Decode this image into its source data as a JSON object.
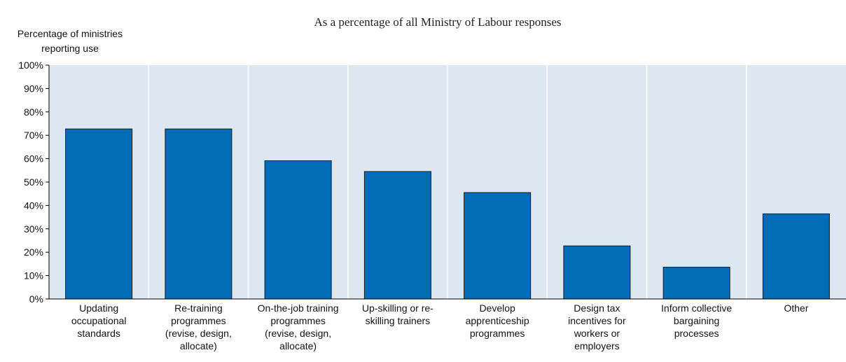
{
  "chart_data": {
    "type": "bar",
    "title": "As a percentage of all Ministry of Labour responses",
    "ylabel_lines": [
      "Percentage of ministries",
      "reporting use"
    ],
    "xlabel": "",
    "ylim": [
      0,
      100
    ],
    "yticks": [
      0,
      10,
      20,
      30,
      40,
      50,
      60,
      70,
      80,
      90,
      100
    ],
    "ytick_labels": [
      "0%",
      "10%",
      "20%",
      "30%",
      "40%",
      "50%",
      "60%",
      "70%",
      "80%",
      "90%",
      "100%"
    ],
    "grid": "vertical separators between categories",
    "categories": [
      {
        "lines": [
          "Updating",
          "occupational",
          "standards"
        ]
      },
      {
        "lines": [
          "Re-training",
          "programmes",
          "(revise, design,",
          "allocate)"
        ]
      },
      {
        "lines": [
          "On-the-job training",
          "programmes",
          "(revise, design,",
          "allocate)"
        ]
      },
      {
        "lines": [
          "Up-skilling or re-",
          "skilling trainers"
        ]
      },
      {
        "lines": [
          "Develop",
          "apprenticeship",
          "programmes"
        ]
      },
      {
        "lines": [
          "Design tax",
          "incentives for",
          "workers or",
          "employers"
        ]
      },
      {
        "lines": [
          "Inform collective",
          "bargaining",
          "processes"
        ]
      },
      {
        "lines": [
          "Other"
        ]
      }
    ],
    "values": [
      72.7,
      72.7,
      59.1,
      54.5,
      45.5,
      22.7,
      13.6,
      36.4
    ],
    "colors": {
      "bar": "#006bb6",
      "bar_stroke": "#1a1a1a",
      "plot_bg": "#dde7f1",
      "separator": "#ffffff",
      "axis": "#000000"
    }
  }
}
